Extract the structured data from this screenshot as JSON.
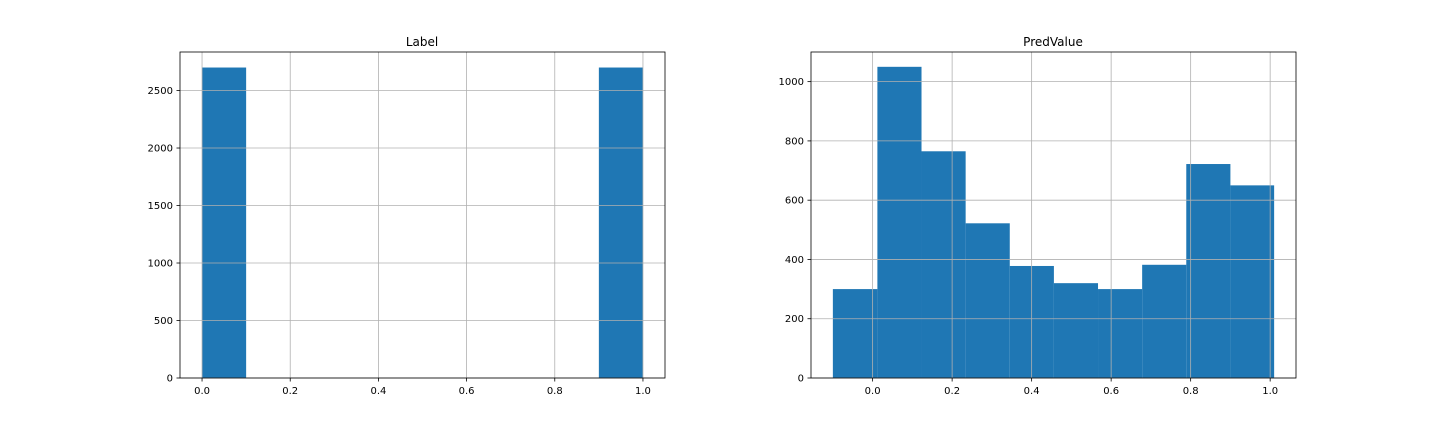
{
  "chart_data": [
    {
      "type": "bar",
      "title": "Label",
      "xlabel": "",
      "ylabel": "",
      "xlim": [
        -0.05,
        1.05
      ],
      "ylim": [
        0,
        2835
      ],
      "grid": true,
      "bar_color": "#1f77b4",
      "xticks": [
        0.0,
        0.2,
        0.4,
        0.6,
        0.8,
        1.0
      ],
      "xtick_labels": [
        "0.0",
        "0.2",
        "0.4",
        "0.6",
        "0.8",
        "1.0"
      ],
      "yticks": [
        0,
        500,
        1000,
        1500,
        2000,
        2500
      ],
      "ytick_labels": [
        "0",
        "500",
        "1000",
        "1500",
        "2000",
        "2500"
      ],
      "bars": [
        {
          "x0": 0.0,
          "x1": 0.1,
          "value": 2700
        },
        {
          "x0": 0.9,
          "x1": 1.0,
          "value": 2700
        }
      ]
    },
    {
      "type": "bar",
      "title": "PredValue",
      "xlabel": "",
      "ylabel": "",
      "xlim": [
        -0.155,
        1.065
      ],
      "ylim": [
        0,
        1100
      ],
      "grid": true,
      "bar_color": "#1f77b4",
      "xticks": [
        0.0,
        0.2,
        0.4,
        0.6,
        0.8,
        1.0
      ],
      "xtick_labels": [
        "0.0",
        "0.2",
        "0.4",
        "0.6",
        "0.8",
        "1.0"
      ],
      "yticks": [
        0,
        200,
        400,
        600,
        800,
        1000
      ],
      "ytick_labels": [
        "0",
        "200",
        "400",
        "600",
        "800",
        "1000"
      ],
      "bars": [
        {
          "x0": -0.1,
          "x1": 0.012,
          "value": 300
        },
        {
          "x0": 0.012,
          "x1": 0.123,
          "value": 1050
        },
        {
          "x0": 0.123,
          "x1": 0.234,
          "value": 765
        },
        {
          "x0": 0.234,
          "x1": 0.345,
          "value": 522
        },
        {
          "x0": 0.345,
          "x1": 0.456,
          "value": 378
        },
        {
          "x0": 0.456,
          "x1": 0.567,
          "value": 320
        },
        {
          "x0": 0.567,
          "x1": 0.678,
          "value": 300
        },
        {
          "x0": 0.678,
          "x1": 0.789,
          "value": 382
        },
        {
          "x0": 0.789,
          "x1": 0.9,
          "value": 722
        },
        {
          "x0": 0.9,
          "x1": 1.01,
          "value": 650
        }
      ]
    }
  ]
}
